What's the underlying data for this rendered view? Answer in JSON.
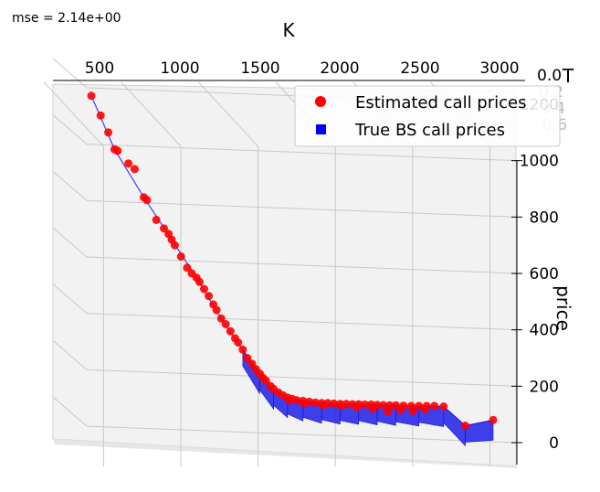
{
  "annotation": "mse = 2.14e+00",
  "chart_data": {
    "type": "scatter",
    "projection": "3d",
    "xlabel": "K",
    "ylabel": "T",
    "zlabel": "price",
    "x_ticks": [
      "500",
      "1000",
      "1500",
      "2000",
      "2500",
      "3000"
    ],
    "y_ticks": [
      "0.0",
      "0.2",
      "0.4",
      "0.6"
    ],
    "z_ticks": [
      "0",
      "200",
      "400",
      "600",
      "800",
      "1000",
      "1200"
    ],
    "xlim": [
      200,
      3100
    ],
    "zlim": [
      -20,
      1420
    ],
    "grid": true,
    "legend_position": "top-right",
    "series": [
      {
        "name": "Estimated call prices",
        "marker": "circle",
        "color": "#ff0000",
        "points": [
          [
            480,
            1230
          ],
          [
            540,
            1160
          ],
          [
            590,
            1100
          ],
          [
            630,
            1040
          ],
          [
            650,
            1035
          ],
          [
            720,
            990
          ],
          [
            760,
            970
          ],
          [
            820,
            870
          ],
          [
            840,
            860
          ],
          [
            900,
            790
          ],
          [
            950,
            760
          ],
          [
            980,
            740
          ],
          [
            1000,
            720
          ],
          [
            1020,
            700
          ],
          [
            1060,
            660
          ],
          [
            1100,
            620
          ],
          [
            1130,
            600
          ],
          [
            1160,
            585
          ],
          [
            1180,
            570
          ],
          [
            1210,
            545
          ],
          [
            1240,
            520
          ],
          [
            1270,
            490
          ],
          [
            1290,
            470
          ],
          [
            1320,
            440
          ],
          [
            1350,
            420
          ],
          [
            1380,
            395
          ],
          [
            1410,
            370
          ],
          [
            1430,
            355
          ],
          [
            1460,
            330
          ],
          [
            1490,
            300
          ],
          [
            1520,
            280
          ],
          [
            1545,
            260
          ],
          [
            1570,
            245
          ],
          [
            1590,
            230
          ],
          [
            1610,
            220
          ],
          [
            1640,
            200
          ],
          [
            1660,
            190
          ],
          [
            1690,
            178
          ],
          [
            1720,
            168
          ],
          [
            1750,
            160
          ],
          [
            1780,
            155
          ],
          [
            1810,
            150
          ],
          [
            1850,
            148
          ],
          [
            1890,
            145
          ],
          [
            1930,
            142
          ],
          [
            1970,
            140
          ],
          [
            2010,
            140
          ],
          [
            2050,
            138
          ],
          [
            2090,
            137
          ],
          [
            2130,
            137
          ],
          [
            2170,
            136
          ],
          [
            2210,
            136
          ],
          [
            2250,
            135
          ],
          [
            2290,
            135
          ],
          [
            2330,
            134
          ],
          [
            2370,
            133
          ],
          [
            2410,
            132
          ],
          [
            2450,
            132
          ],
          [
            2500,
            131
          ],
          [
            2550,
            130
          ],
          [
            2600,
            130
          ],
          [
            2650,
            130
          ],
          [
            2700,
            130
          ],
          [
            2760,
            128
          ],
          [
            2400,
            110
          ],
          [
            2480,
            115
          ],
          [
            2560,
            112
          ],
          [
            2640,
            118
          ],
          [
            2300,
            120
          ],
          [
            2200,
            125
          ],
          [
            2100,
            130
          ],
          [
            1980,
            132
          ],
          [
            1860,
            138
          ],
          [
            1760,
            150
          ],
          [
            2900,
            60
          ],
          [
            3080,
            80
          ]
        ]
      },
      {
        "name": "True BS call prices",
        "marker": "square",
        "color": "#0000ff",
        "points": [
          [
            480,
            1230
          ],
          [
            630,
            1040
          ],
          [
            820,
            870
          ],
          [
            1000,
            720
          ],
          [
            1160,
            585
          ],
          [
            1320,
            440
          ],
          [
            1460,
            330
          ],
          [
            1570,
            245
          ],
          [
            1660,
            190
          ],
          [
            1750,
            160
          ],
          [
            1850,
            148
          ],
          [
            1970,
            140
          ],
          [
            2090,
            137
          ],
          [
            2210,
            136
          ],
          [
            2330,
            134
          ],
          [
            2450,
            132
          ],
          [
            2600,
            130
          ],
          [
            2760,
            128
          ],
          [
            2900,
            60
          ],
          [
            3080,
            80
          ]
        ]
      }
    ]
  }
}
